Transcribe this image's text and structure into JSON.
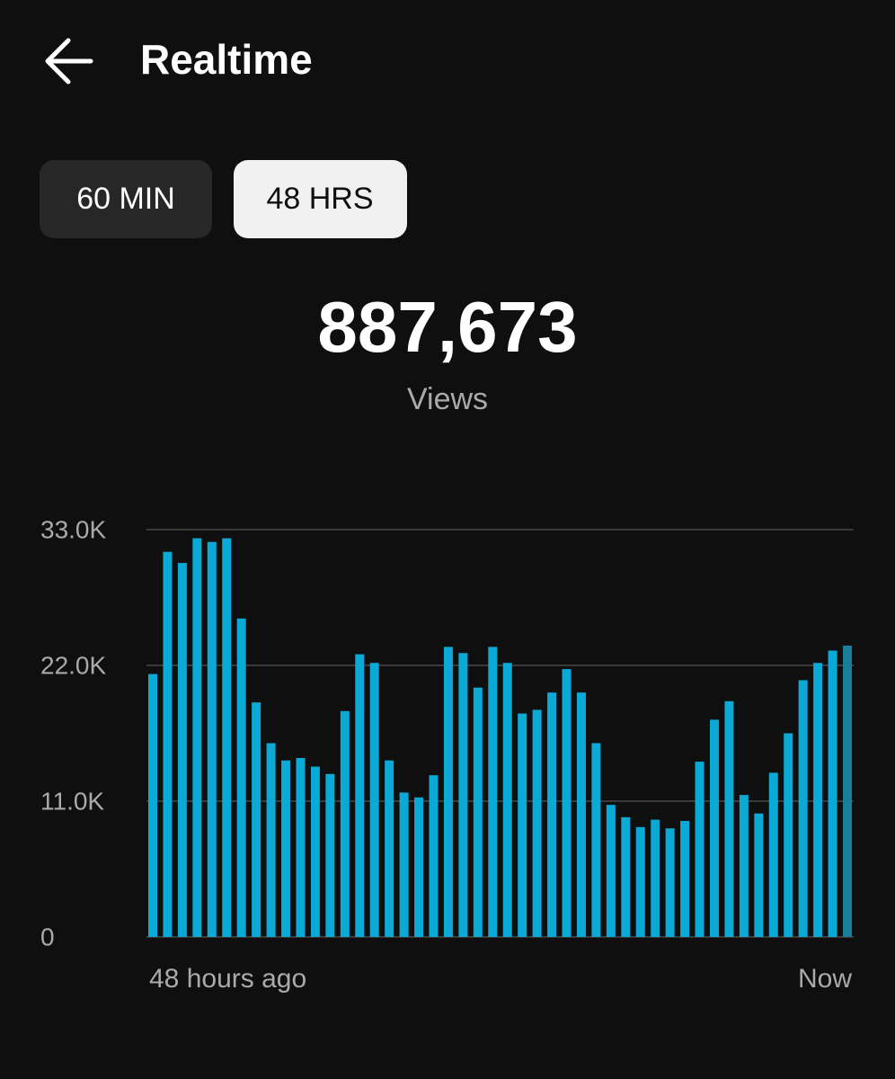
{
  "header": {
    "title": "Realtime"
  },
  "tabs": [
    "60 MIN",
    "48 HRS"
  ],
  "total": {
    "value": "887,673",
    "label": "Views"
  },
  "chart_data": {
    "type": "bar",
    "categories": [
      "48 hours ago",
      null,
      null,
      null,
      null,
      null,
      null,
      null,
      null,
      null,
      null,
      null,
      null,
      null,
      null,
      null,
      null,
      null,
      null,
      null,
      null,
      null,
      null,
      null,
      null,
      null,
      null,
      null,
      null,
      null,
      null,
      null,
      null,
      null,
      null,
      null,
      null,
      null,
      null,
      null,
      null,
      null,
      null,
      null,
      null,
      null,
      null,
      "Now"
    ],
    "values": [
      21300,
      31200,
      30300,
      32300,
      32000,
      32300,
      25800,
      19000,
      15700,
      14300,
      14500,
      13800,
      13200,
      18300,
      22900,
      22200,
      14300,
      11700,
      11300,
      13100,
      23500,
      23000,
      20200,
      23500,
      22200,
      18100,
      18400,
      19800,
      21700,
      19800,
      15700,
      10700,
      9700,
      8900,
      9500,
      8800,
      9400,
      14200,
      17600,
      19100,
      11500,
      10000,
      13300,
      16500,
      20800,
      22200,
      23200,
      23600
    ],
    "color": "#0ba9d6",
    "current_color": "#1a7e98",
    "ylim": [
      0,
      33000
    ],
    "yticks": [
      0,
      {
        "value": 11000,
        "label": "11.0K"
      },
      {
        "value": 22000,
        "label": "22.0K"
      },
      {
        "value": 33000,
        "label": "33.0K"
      }
    ],
    "grid": true
  }
}
